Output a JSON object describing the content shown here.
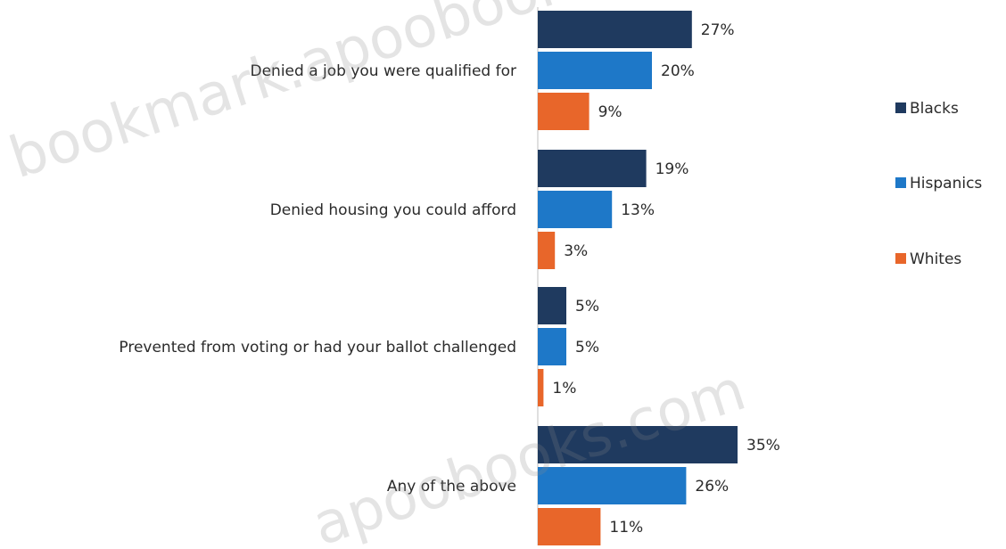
{
  "chart_data": {
    "type": "bar",
    "orientation": "horizontal",
    "categories": [
      "Denied a job you were qualified for",
      "Denied housing you could afford",
      "Prevented from voting or had your ballot challenged",
      "Any of the above"
    ],
    "series": [
      {
        "name": "Blacks",
        "values": [
          27,
          19,
          5,
          35
        ],
        "color": "#1f3a5f"
      },
      {
        "name": "Hispanics",
        "values": [
          20,
          13,
          5,
          26
        ],
        "color": "#1e78c8"
      },
      {
        "name": "Whites",
        "values": [
          9,
          3,
          1,
          11
        ],
        "color": "#e8662a"
      }
    ],
    "value_suffix": "%",
    "xlim": [
      0,
      40
    ],
    "grid": false,
    "legend_position": "right"
  },
  "watermarks": [
    "bookmark.apoobooks.com",
    "apoobooks.com"
  ]
}
